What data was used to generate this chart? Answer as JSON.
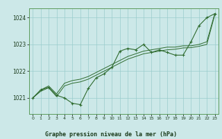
{
  "title": "Graphe pression niveau de la mer (hPa)",
  "background_color": "#cce8e8",
  "grid_color": "#99cccc",
  "line_color": "#2d6a2d",
  "xlim": [
    -0.5,
    23.5
  ],
  "ylim": [
    1020.4,
    1024.35
  ],
  "yticks": [
    1021,
    1022,
    1023,
    1024
  ],
  "xticks": [
    0,
    1,
    2,
    3,
    4,
    5,
    6,
    7,
    8,
    9,
    10,
    11,
    12,
    13,
    14,
    15,
    16,
    17,
    18,
    19,
    20,
    21,
    22,
    23
  ],
  "series_main": [
    1021.0,
    1021.3,
    1021.4,
    1021.1,
    1021.0,
    1020.8,
    1020.75,
    1021.35,
    1021.75,
    1021.9,
    1022.15,
    1022.75,
    1022.85,
    1022.8,
    1023.0,
    1022.7,
    1022.8,
    1022.7,
    1022.6,
    1022.6,
    1023.1,
    1023.7,
    1024.0,
    1024.15
  ],
  "series_upper": [
    1021.0,
    1021.3,
    1021.45,
    1021.15,
    1021.55,
    1021.65,
    1021.7,
    1021.8,
    1021.95,
    1022.1,
    1022.25,
    1022.4,
    1022.55,
    1022.65,
    1022.75,
    1022.8,
    1022.85,
    1022.9,
    1022.9,
    1022.95,
    1022.95,
    1023.0,
    1023.1,
    1024.15
  ],
  "series_lower": [
    1021.0,
    1021.25,
    1021.38,
    1021.05,
    1021.45,
    1021.55,
    1021.6,
    1021.7,
    1021.85,
    1022.0,
    1022.15,
    1022.3,
    1022.45,
    1022.55,
    1022.65,
    1022.7,
    1022.75,
    1022.8,
    1022.82,
    1022.87,
    1022.88,
    1022.93,
    1023.0,
    1024.1
  ]
}
